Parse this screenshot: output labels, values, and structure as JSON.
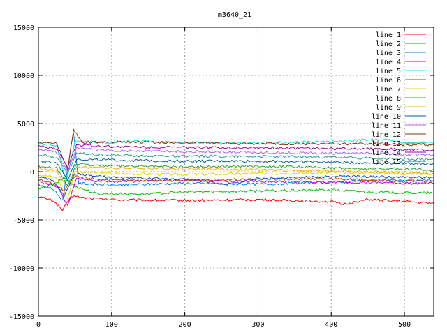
{
  "chart_data": {
    "type": "line",
    "title": "m3640_21",
    "xlabel": "",
    "ylabel": "",
    "xlim": [
      0,
      540
    ],
    "ylim": [
      -15000,
      15000
    ],
    "xticks": [
      0,
      100,
      200,
      300,
      400,
      500
    ],
    "yticks": [
      -15000,
      -10000,
      -5000,
      0,
      5000,
      10000,
      15000
    ],
    "grid": true,
    "legend_position": "top-right",
    "series": [
      {
        "name": "line 1",
        "color": "#ff0000",
        "values": [
          [
            0,
            -2600
          ],
          [
            20,
            -3000
          ],
          [
            33,
            -4000
          ],
          [
            45,
            -2500
          ],
          [
            60,
            -2700
          ],
          [
            100,
            -2900
          ],
          [
            200,
            -3000
          ],
          [
            300,
            -2900
          ],
          [
            400,
            -3100
          ],
          [
            415,
            -3400
          ],
          [
            450,
            -2900
          ],
          [
            500,
            -3100
          ],
          [
            540,
            -3300
          ]
        ]
      },
      {
        "name": "line 2",
        "color": "#00c000",
        "values": [
          [
            0,
            -1800
          ],
          [
            25,
            -1200
          ],
          [
            35,
            -600
          ],
          [
            50,
            -1500
          ],
          [
            80,
            -2300
          ],
          [
            150,
            -2300
          ],
          [
            200,
            -2100
          ],
          [
            300,
            -2000
          ],
          [
            400,
            -1900
          ],
          [
            450,
            -2100
          ],
          [
            500,
            -2200
          ],
          [
            540,
            -2200
          ]
        ]
      },
      {
        "name": "line 3",
        "color": "#0080ff",
        "values": [
          [
            0,
            -1300
          ],
          [
            20,
            -1800
          ],
          [
            33,
            -3000
          ],
          [
            48,
            4200
          ],
          [
            55,
            -1200
          ],
          [
            100,
            -1400
          ],
          [
            200,
            -1200
          ],
          [
            300,
            -1300
          ],
          [
            400,
            -1100
          ],
          [
            450,
            -900
          ],
          [
            500,
            -900
          ],
          [
            540,
            -900
          ]
        ]
      },
      {
        "name": "line 4",
        "color": "#c000ff",
        "values": [
          [
            0,
            -1000
          ],
          [
            25,
            -1500
          ],
          [
            40,
            -3600
          ],
          [
            52,
            -600
          ],
          [
            70,
            -900
          ],
          [
            100,
            -1000
          ],
          [
            200,
            -900
          ],
          [
            300,
            -1000
          ],
          [
            400,
            -1100
          ],
          [
            450,
            -1100
          ],
          [
            500,
            -1200
          ],
          [
            540,
            -1200
          ]
        ]
      },
      {
        "name": "line 5",
        "color": "#00eeee",
        "values": [
          [
            0,
            2900
          ],
          [
            25,
            2700
          ],
          [
            38,
            -1000
          ],
          [
            50,
            3200
          ],
          [
            100,
            3000
          ],
          [
            145,
            3200
          ],
          [
            200,
            3000
          ],
          [
            300,
            3000
          ],
          [
            400,
            3100
          ],
          [
            470,
            3400
          ],
          [
            500,
            3000
          ],
          [
            540,
            3000
          ]
        ]
      },
      {
        "name": "line 6",
        "color": "#c04000",
        "values": [
          [
            0,
            -800
          ],
          [
            20,
            -1200
          ],
          [
            35,
            -2000
          ],
          [
            50,
            -500
          ],
          [
            100,
            -900
          ],
          [
            200,
            -900
          ],
          [
            300,
            -800
          ],
          [
            400,
            -700
          ],
          [
            450,
            -900
          ],
          [
            500,
            -1000
          ],
          [
            540,
            -1000
          ]
        ]
      },
      {
        "name": "line 7",
        "color": "#e0d000",
        "values": [
          [
            0,
            -300
          ],
          [
            25,
            -600
          ],
          [
            40,
            -2800
          ],
          [
            50,
            0
          ],
          [
            100,
            -200
          ],
          [
            200,
            -300
          ],
          [
            300,
            -200
          ],
          [
            400,
            -100
          ],
          [
            450,
            -100
          ],
          [
            500,
            -200
          ],
          [
            540,
            -200
          ]
        ]
      },
      {
        "name": "line 8",
        "color": "#30a030",
        "values": [
          [
            0,
            600
          ],
          [
            25,
            400
          ],
          [
            40,
            -1500
          ],
          [
            52,
            800
          ],
          [
            100,
            600
          ],
          [
            200,
            500
          ],
          [
            300,
            600
          ],
          [
            400,
            400
          ],
          [
            450,
            300
          ],
          [
            500,
            300
          ],
          [
            540,
            200
          ]
        ]
      },
      {
        "name": "line 9",
        "color": "#ffa500",
        "values": [
          [
            0,
            300
          ],
          [
            25,
            100
          ],
          [
            40,
            -1800
          ],
          [
            52,
            500
          ],
          [
            100,
            400
          ],
          [
            200,
            300
          ],
          [
            300,
            200
          ],
          [
            400,
            100
          ],
          [
            450,
            0
          ],
          [
            500,
            -100
          ],
          [
            540,
            -200
          ]
        ]
      },
      {
        "name": "line 10",
        "color": "#00609f",
        "values": [
          [
            0,
            1100
          ],
          [
            25,
            900
          ],
          [
            40,
            -800
          ],
          [
            52,
            1300
          ],
          [
            100,
            1200
          ],
          [
            200,
            1100
          ],
          [
            300,
            1100
          ],
          [
            400,
            1000
          ],
          [
            450,
            900
          ],
          [
            500,
            900
          ],
          [
            540,
            800
          ]
        ]
      },
      {
        "name": "line 11",
        "color": "#b060ff",
        "values": [
          [
            0,
            2300
          ],
          [
            25,
            2000
          ],
          [
            40,
            0
          ],
          [
            52,
            2400
          ],
          [
            100,
            2200
          ],
          [
            200,
            2100
          ],
          [
            300,
            2000
          ],
          [
            400,
            1900
          ],
          [
            450,
            1900
          ],
          [
            500,
            1800
          ],
          [
            540,
            1700
          ]
        ]
      },
      {
        "name": "line 12",
        "color": "#8b3000",
        "values": [
          [
            0,
            3100
          ],
          [
            25,
            2900
          ],
          [
            40,
            300
          ],
          [
            48,
            4400
          ],
          [
            60,
            3000
          ],
          [
            100,
            3100
          ],
          [
            200,
            3000
          ],
          [
            300,
            2900
          ],
          [
            400,
            2900
          ],
          [
            450,
            2900
          ],
          [
            500,
            2800
          ],
          [
            540,
            2800
          ]
        ]
      },
      {
        "name": "line 13",
        "color": "#20a080",
        "values": [
          [
            0,
            1800
          ],
          [
            25,
            1500
          ],
          [
            40,
            -200
          ],
          [
            52,
            1900
          ],
          [
            100,
            1700
          ],
          [
            200,
            1600
          ],
          [
            300,
            1600
          ],
          [
            400,
            1500
          ],
          [
            450,
            1400
          ],
          [
            500,
            1300
          ],
          [
            540,
            1300
          ]
        ]
      },
      {
        "name": "line 14",
        "color": "#a000a0",
        "values": [
          [
            0,
            2600
          ],
          [
            25,
            2400
          ],
          [
            40,
            500
          ],
          [
            52,
            2800
          ],
          [
            100,
            2600
          ],
          [
            200,
            2500
          ],
          [
            300,
            2500
          ],
          [
            400,
            2400
          ],
          [
            450,
            2400
          ],
          [
            500,
            2300
          ],
          [
            540,
            2200
          ]
        ]
      },
      {
        "name": "line 15",
        "color": "#1050c0",
        "values": [
          [
            0,
            -600
          ],
          [
            20,
            -900
          ],
          [
            35,
            -2500
          ],
          [
            50,
            -200
          ],
          [
            100,
            -600
          ],
          [
            200,
            -800
          ],
          [
            260,
            -1300
          ],
          [
            300,
            -700
          ],
          [
            400,
            -500
          ],
          [
            450,
            -500
          ],
          [
            500,
            -600
          ],
          [
            540,
            -600
          ]
        ]
      }
    ]
  }
}
